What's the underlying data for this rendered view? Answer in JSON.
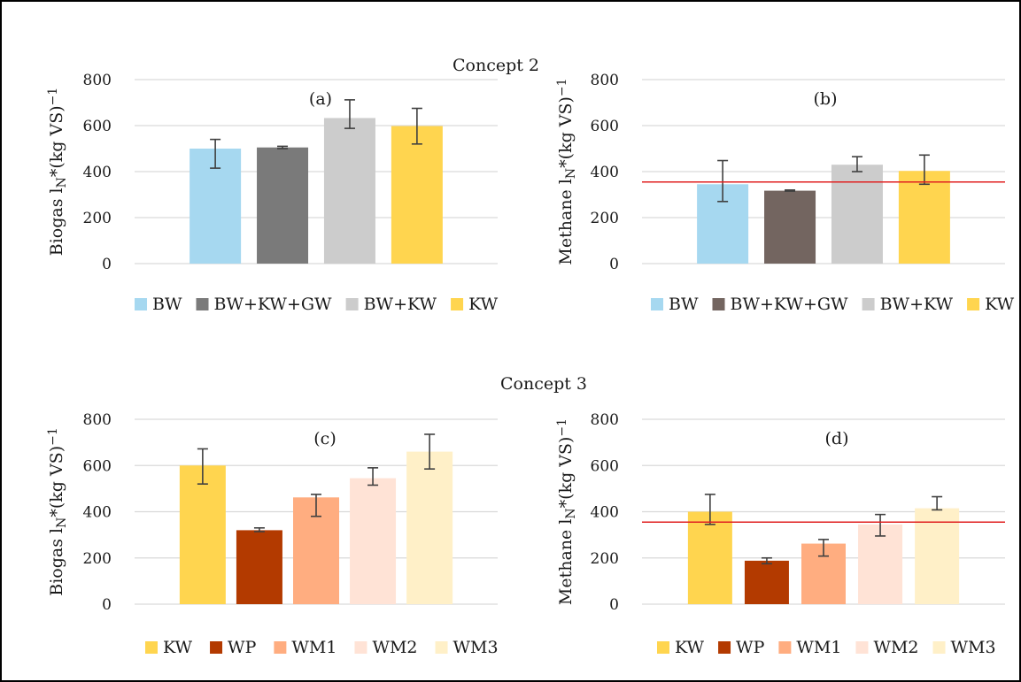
{
  "figure": {
    "concepts": [
      "Concept 2",
      "Concept 3"
    ]
  },
  "chart_data": [
    {
      "panel": "(a)",
      "type": "bar",
      "concept": "Concept 2",
      "ylabel_main": "Biogas l",
      "ylabel_sub": "N",
      "ylabel_rest": "*(kg VS)",
      "ylabel_sup": "−1",
      "ylim": [
        0,
        800
      ],
      "yticks": [
        0,
        200,
        400,
        600,
        800
      ],
      "grid": true,
      "legend_position": "bottom",
      "categories": [
        "BW",
        "BW+KW+GW",
        "BW+KW",
        "KW"
      ],
      "values": [
        500,
        505,
        633,
        598
      ],
      "errors": [
        [
          415,
          540
        ],
        [
          500,
          510
        ],
        [
          588,
          712
        ],
        [
          520,
          675
        ]
      ],
      "colors": [
        "#a6d8f0",
        "#7a7a7a",
        "#cccccc",
        "#ffd54f"
      ],
      "reference_line": null
    },
    {
      "panel": "(b)",
      "type": "bar",
      "concept": "Concept 2",
      "ylabel_main": "Methane l",
      "ylabel_sub": "N",
      "ylabel_rest": "*(kg VS)",
      "ylabel_sup": "−1",
      "ylim": [
        0,
        800
      ],
      "yticks": [
        0,
        200,
        400,
        600,
        800
      ],
      "grid": true,
      "legend_position": "bottom",
      "categories": [
        "BW",
        "BW+KW+GW",
        "BW+KW",
        "KW"
      ],
      "values": [
        345,
        317,
        430,
        403
      ],
      "errors": [
        [
          270,
          448
        ],
        [
          315,
          320
        ],
        [
          400,
          465
        ],
        [
          345,
          472
        ]
      ],
      "colors": [
        "#a6d8f0",
        "#736560",
        "#cccccc",
        "#ffd54f"
      ],
      "reference_line": {
        "value": 355,
        "color": "#e02020"
      }
    },
    {
      "panel": "(c)",
      "type": "bar",
      "concept": "Concept 3",
      "ylabel_main": "Biogas l",
      "ylabel_sub": "N",
      "ylabel_rest": "*(kg VS)",
      "ylabel_sup": "−1",
      "ylim": [
        0,
        800
      ],
      "yticks": [
        0,
        200,
        400,
        600,
        800
      ],
      "grid": true,
      "legend_position": "bottom",
      "categories": [
        "KW",
        "WP",
        "WM1",
        "WM2",
        "WM3"
      ],
      "values": [
        600,
        320,
        462,
        545,
        660
      ],
      "errors": [
        [
          520,
          672
        ],
        [
          314,
          330
        ],
        [
          380,
          475
        ],
        [
          515,
          590
        ],
        [
          585,
          735
        ]
      ],
      "colors": [
        "#ffd54f",
        "#b33a00",
        "#ffad80",
        "#ffe3d6",
        "#fff0c8"
      ],
      "reference_line": null
    },
    {
      "panel": "(d)",
      "type": "bar",
      "concept": "Concept 3",
      "ylabel_main": "Methane l",
      "ylabel_sub": "N",
      "ylabel_rest": "*(kg VS)",
      "ylabel_sup": "−1",
      "ylim": [
        0,
        800
      ],
      "yticks": [
        0,
        200,
        400,
        600,
        800
      ],
      "grid": true,
      "legend_position": "bottom",
      "categories": [
        "KW",
        "WP",
        "WM1",
        "WM2",
        "WM3"
      ],
      "values": [
        400,
        188,
        262,
        345,
        415
      ],
      "errors": [
        [
          345,
          475
        ],
        [
          175,
          200
        ],
        [
          208,
          280
        ],
        [
          295,
          388
        ],
        [
          408,
          465
        ]
      ],
      "colors": [
        "#ffd54f",
        "#b33a00",
        "#ffad80",
        "#ffe3d6",
        "#fff0c8"
      ],
      "reference_line": {
        "value": 355,
        "color": "#e02020"
      }
    }
  ]
}
